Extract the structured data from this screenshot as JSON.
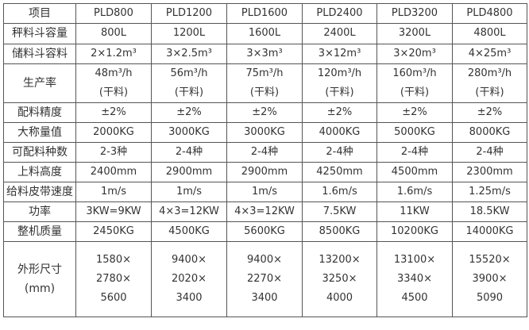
{
  "header": [
    "项目",
    "PLD800",
    "PLD1200",
    "PLD1600",
    "PLD2400",
    "PLD3200",
    "PLD4800"
  ],
  "rows": [
    {
      "label": "秤料斗容量",
      "values": [
        "800L",
        "1200L",
        "1600L",
        "2400L",
        "3200L",
        "4800L"
      ]
    },
    {
      "label": "储料斗容料",
      "values": [
        "2×1.2m³",
        "3×2.5m³",
        "3×3m³",
        "3×12m³",
        "3×20m³",
        "4×25m³"
      ]
    },
    {
      "label": "生产率",
      "values": [
        [
          "48m³/h",
          "(干料)"
        ],
        [
          "56m³/h",
          "(干料)"
        ],
        [
          "75m³/h",
          "(干料)"
        ],
        [
          "120m³/h",
          "(干料)"
        ],
        [
          "160m³/h",
          "(干料)"
        ],
        [
          "280m³/h",
          "(干料)"
        ]
      ]
    },
    {
      "label": "配料精度",
      "values": [
        "±2%",
        "±2%",
        "±2%",
        "±2%",
        "±2%",
        "±2%"
      ]
    },
    {
      "label": "大称量值",
      "values": [
        "2000KG",
        "3000KG",
        "3000KG",
        "4000KG",
        "5000KG",
        "8000KG"
      ]
    },
    {
      "label": "可配料种数",
      "values": [
        "2-3种",
        "2-4种",
        "2-4种",
        "2-4种",
        "2-4种",
        "2-4种"
      ]
    },
    {
      "label": "上料高度",
      "values": [
        "2400mm",
        "2900mm",
        "2900mm",
        "4250mm",
        "4500mm",
        "2300mm"
      ]
    },
    {
      "label": "给料皮带速度",
      "values": [
        "1m/s",
        "1m/s",
        "1m/s",
        "1.6m/s",
        "1.6m/s",
        "1.25m/s"
      ]
    },
    {
      "label": "功率",
      "values": [
        "3KW=9KW",
        "4×3=12KW",
        "4×3=12KW",
        "7.5KW",
        "11KW",
        "18.5KW"
      ]
    },
    {
      "label": "整机质量",
      "values": [
        "2450KG",
        "4500KG",
        "5600KG",
        "8500KG",
        "10200KG",
        "14000KG"
      ]
    },
    {
      "label": [
        "外形尺寸",
        "(mm)"
      ],
      "values": [
        [
          "1580×",
          "2780×",
          "5600"
        ],
        [
          "9400×",
          "2020×",
          "3400"
        ],
        [
          "9400×",
          "2270×",
          "3400"
        ],
        [
          "13200×",
          "3250×",
          "4000"
        ],
        [
          "13100×",
          "3340×",
          "4500"
        ],
        [
          "15520×",
          "3900×",
          "5090"
        ]
      ]
    }
  ]
}
